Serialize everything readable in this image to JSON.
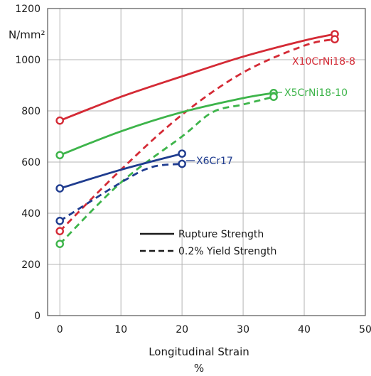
{
  "chart_data": {
    "type": "line",
    "ylabel": "N/mm²",
    "xlabel_line1": "Longitudinal Strain",
    "xlabel_line2": "%",
    "xlim": [
      -2,
      50
    ],
    "ylim": [
      0,
      1200
    ],
    "x_ticks": [
      0,
      10,
      20,
      30,
      40,
      50
    ],
    "y_ticks": [
      0,
      200,
      400,
      600,
      800,
      1000,
      1200
    ],
    "grid": true,
    "legend_placement": "lower-center",
    "legend": [
      {
        "label": "Rupture Strength",
        "style": "solid"
      },
      {
        "label": "0.2% Yield Strength",
        "style": "dashed"
      }
    ],
    "series": [
      {
        "name": "X10CrNi18-8",
        "color": "#d42a35",
        "kind": "rupture",
        "x": [
          0,
          10,
          20,
          30,
          40,
          45
        ],
        "y": [
          762,
          855,
          935,
          1012,
          1075,
          1100
        ]
      },
      {
        "name": "X10CrNi18-8",
        "color": "#d42a35",
        "kind": "yield",
        "x": [
          0,
          10,
          20,
          30,
          40,
          45
        ],
        "y": [
          330,
          570,
          785,
          950,
          1055,
          1080
        ]
      },
      {
        "name": "X5CrNi18-10",
        "color": "#3db44a",
        "kind": "rupture",
        "x": [
          0,
          10,
          20,
          30,
          35
        ],
        "y": [
          627,
          720,
          795,
          850,
          870
        ]
      },
      {
        "name": "X5CrNi18-10",
        "color": "#3db44a",
        "kind": "yield",
        "x": [
          0,
          10,
          20,
          25,
          30,
          35
        ],
        "y": [
          280,
          520,
          700,
          795,
          825,
          855
        ]
      },
      {
        "name": "X6Cr17",
        "color": "#1f3c8f",
        "kind": "rupture",
        "x": [
          0,
          10,
          20
        ],
        "y": [
          497,
          570,
          633
        ]
      },
      {
        "name": "X6Cr17",
        "color": "#1f3c8f",
        "kind": "yield",
        "x": [
          0,
          10,
          15,
          20
        ],
        "y": [
          370,
          520,
          580,
          593
        ]
      }
    ],
    "labels": [
      {
        "text": "X10CrNi18-8",
        "color": "#d42a35"
      },
      {
        "text": "X5CrNi18-10",
        "color": "#3db44a"
      },
      {
        "text": "X6Cr17",
        "color": "#1f3c8f"
      }
    ]
  }
}
